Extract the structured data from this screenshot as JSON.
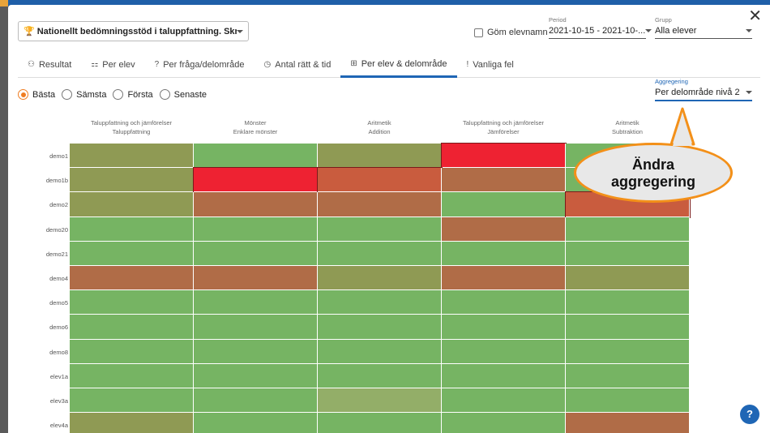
{
  "test_selector": {
    "label": "Nationellt bedömningsstöd i taluppfattning. Skriftli..."
  },
  "hide_names": {
    "label": "Göm elevnamn"
  },
  "period": {
    "label": "Period",
    "value": "2021-10-15 - 2021-10-..."
  },
  "group": {
    "label": "Grupp",
    "value": "Alla elever"
  },
  "tabs": [
    {
      "label": "Resultat",
      "icon": "people-icon"
    },
    {
      "label": "Per elev",
      "icon": "class-icon"
    },
    {
      "label": "Per fråga/delområde",
      "icon": "question-icon"
    },
    {
      "label": "Antal rätt & tid",
      "icon": "clock-icon"
    },
    {
      "label": "Per elev & delområde",
      "icon": "grid-icon",
      "active": true
    },
    {
      "label": "Vanliga fel",
      "icon": "exclamation-icon"
    }
  ],
  "options": [
    {
      "label": "Bästa",
      "selected": true
    },
    {
      "label": "Sämsta"
    },
    {
      "label": "Första"
    },
    {
      "label": "Senaste"
    }
  ],
  "aggregation": {
    "label": "Aggregering",
    "value": "Per delområde nivå 2"
  },
  "columns": [
    {
      "area": "Taluppfattning och jämförelser",
      "sub": "Taluppfattning"
    },
    {
      "area": "Mönster",
      "sub": "Enklare mönster"
    },
    {
      "area": "Aritmetik",
      "sub": "Addition"
    },
    {
      "area": "Taluppfattning och jämförelser",
      "sub": "Jämförelser"
    },
    {
      "area": "Aritmetik",
      "sub": "Subtraktion"
    }
  ],
  "rows": [
    "demo1",
    "demo1b",
    "demo2",
    "demo20",
    "demo21",
    "demo4",
    "demo5",
    "demo6",
    "demo8",
    "elev1a",
    "elev3a",
    "elev4a"
  ],
  "heatmap": [
    [
      "olive",
      "green",
      "olive",
      "red",
      "green"
    ],
    [
      "olive",
      "red",
      "rust",
      "brown",
      "green"
    ],
    [
      "olive",
      "brown",
      "brown",
      "green",
      "rust"
    ],
    [
      "green",
      "green",
      "green",
      "brown",
      "green"
    ],
    [
      "green",
      "green",
      "green",
      "green",
      "green"
    ],
    [
      "brown",
      "brown",
      "olive",
      "brown",
      "olive"
    ],
    [
      "green",
      "green",
      "green",
      "green",
      "green"
    ],
    [
      "green",
      "green",
      "green",
      "green",
      "green"
    ],
    [
      "green",
      "green",
      "green",
      "green",
      "green"
    ],
    [
      "green",
      "green",
      "green",
      "green",
      "green"
    ],
    [
      "green",
      "green",
      "sage",
      "green",
      "green"
    ],
    [
      "olive",
      "green",
      "green",
      "green",
      "brown"
    ]
  ],
  "colors": {
    "green": "#76b463",
    "olive": "#8f9a54",
    "red": "#ee2232",
    "rust": "#c95c3e",
    "brown": "#b06c47",
    "sage": "#93ae68"
  },
  "callout": {
    "line1": "Ändra",
    "line2": "aggregering"
  },
  "help": {
    "label": "?"
  }
}
